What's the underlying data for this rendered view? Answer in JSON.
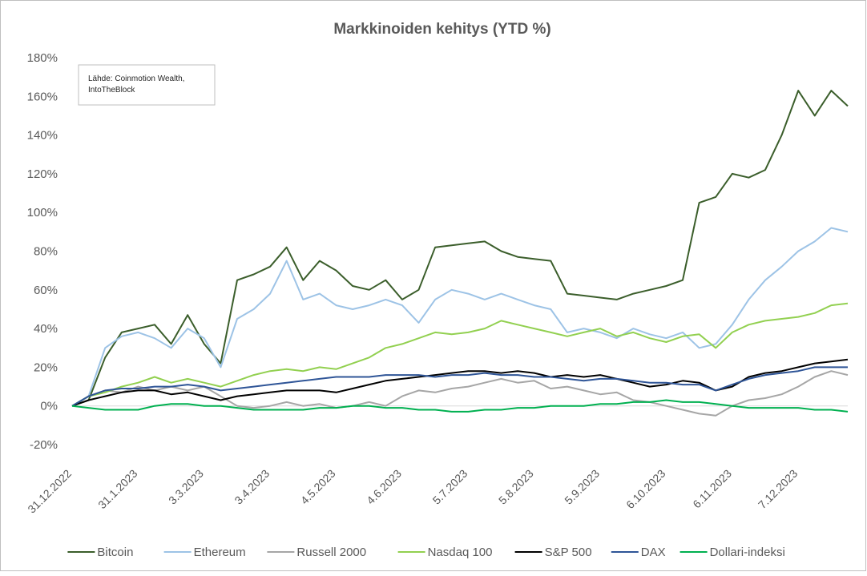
{
  "chart_data": {
    "type": "line",
    "title": "Markkinoiden kehitys (YTD %)",
    "annotation": [
      "Lähde: Coinmotion Wealth,",
      "IntoTheBlock"
    ],
    "categories": [
      "31.12.2022",
      null,
      null,
      null,
      "31.1.2023",
      null,
      null,
      null,
      "3.3.2023",
      null,
      null,
      null,
      "3.4.2023",
      null,
      null,
      null,
      "4.5.2023",
      null,
      null,
      null,
      "4.6.2023",
      null,
      null,
      null,
      "5.7.2023",
      null,
      null,
      null,
      "5.8.2023",
      null,
      null,
      null,
      "5.9.2023",
      null,
      null,
      null,
      "6.10.2023",
      null,
      null,
      null,
      "6.11.2023",
      null,
      null,
      null,
      "7.12.2023",
      null,
      null,
      null
    ],
    "ylim": [
      -20,
      180
    ],
    "yticks": [
      {
        "value": -20,
        "label": "-20%"
      },
      {
        "value": 0,
        "label": "0%"
      },
      {
        "value": 20,
        "label": "20%"
      },
      {
        "value": 40,
        "label": "40%"
      },
      {
        "value": 60,
        "label": "60%"
      },
      {
        "value": 80,
        "label": "80%"
      },
      {
        "value": 100,
        "label": "100%"
      },
      {
        "value": 120,
        "label": "120%"
      },
      {
        "value": 140,
        "label": "140%"
      },
      {
        "value": 160,
        "label": "160%"
      },
      {
        "value": 180,
        "label": "180%"
      }
    ],
    "legend": "bottom",
    "series": [
      {
        "name": "Bitcoin",
        "color": "#3b5e2b",
        "values": [
          0,
          3,
          25,
          38,
          40,
          42,
          32,
          47,
          32,
          22,
          65,
          68,
          72,
          82,
          65,
          75,
          70,
          62,
          60,
          65,
          55,
          60,
          82,
          83,
          84,
          85,
          80,
          77,
          76,
          75,
          58,
          57,
          56,
          55,
          58,
          60,
          62,
          65,
          105,
          108,
          120,
          118,
          122,
          140,
          163,
          150,
          163,
          155
        ]
      },
      {
        "name": "Ethereum",
        "color": "#9dc3e6",
        "values": [
          0,
          5,
          30,
          36,
          38,
          35,
          30,
          40,
          35,
          20,
          45,
          50,
          58,
          75,
          55,
          58,
          52,
          50,
          52,
          55,
          52,
          43,
          55,
          60,
          58,
          55,
          58,
          55,
          52,
          50,
          38,
          40,
          38,
          35,
          40,
          37,
          35,
          38,
          30,
          32,
          42,
          55,
          65,
          72,
          80,
          85,
          92,
          90
        ]
      },
      {
        "name": "Russell 2000",
        "color": "#a6a6a6",
        "values": [
          0,
          5,
          8,
          7,
          10,
          8,
          10,
          8,
          10,
          5,
          0,
          -1,
          0,
          2,
          0,
          1,
          -1,
          0,
          2,
          0,
          5,
          8,
          7,
          9,
          10,
          12,
          14,
          12,
          13,
          9,
          10,
          8,
          6,
          7,
          3,
          2,
          0,
          -2,
          -4,
          -5,
          0,
          3,
          4,
          6,
          10,
          15,
          18,
          16
        ]
      },
      {
        "name": "Nasdaq 100",
        "color": "#92d050",
        "values": [
          0,
          5,
          7,
          10,
          12,
          15,
          12,
          14,
          12,
          10,
          13,
          16,
          18,
          19,
          18,
          20,
          19,
          22,
          25,
          30,
          32,
          35,
          38,
          37,
          38,
          40,
          44,
          42,
          40,
          38,
          36,
          38,
          40,
          36,
          38,
          35,
          33,
          36,
          37,
          30,
          38,
          42,
          44,
          45,
          46,
          48,
          52,
          53
        ]
      },
      {
        "name": "S&P 500",
        "color": "#000000",
        "values": [
          0,
          3,
          5,
          7,
          8,
          8,
          6,
          7,
          5,
          3,
          5,
          6,
          7,
          8,
          8,
          8,
          7,
          9,
          11,
          13,
          14,
          15,
          16,
          17,
          18,
          18,
          17,
          18,
          17,
          15,
          16,
          15,
          16,
          14,
          12,
          10,
          11,
          13,
          12,
          8,
          10,
          15,
          17,
          18,
          20,
          22,
          23,
          24
        ]
      },
      {
        "name": "DAX",
        "color": "#2f5597",
        "values": [
          0,
          5,
          8,
          9,
          9,
          10,
          10,
          11,
          10,
          8,
          9,
          10,
          11,
          12,
          13,
          14,
          15,
          15,
          15,
          16,
          16,
          16,
          15,
          16,
          16,
          17,
          16,
          16,
          15,
          15,
          14,
          13,
          14,
          14,
          13,
          12,
          12,
          11,
          11,
          8,
          11,
          14,
          16,
          17,
          18,
          20,
          20,
          20
        ]
      },
      {
        "name": "Dollari-indeksi",
        "color": "#00b050",
        "values": [
          0,
          -1,
          -2,
          -2,
          -2,
          0,
          1,
          1,
          0,
          0,
          -1,
          -2,
          -2,
          -2,
          -2,
          -1,
          -1,
          0,
          0,
          -1,
          -1,
          -2,
          -2,
          -3,
          -3,
          -2,
          -2,
          -1,
          -1,
          0,
          0,
          0,
          1,
          1,
          2,
          2,
          3,
          2,
          2,
          1,
          0,
          -1,
          -1,
          -1,
          -1,
          -2,
          -2,
          -3
        ]
      }
    ]
  }
}
